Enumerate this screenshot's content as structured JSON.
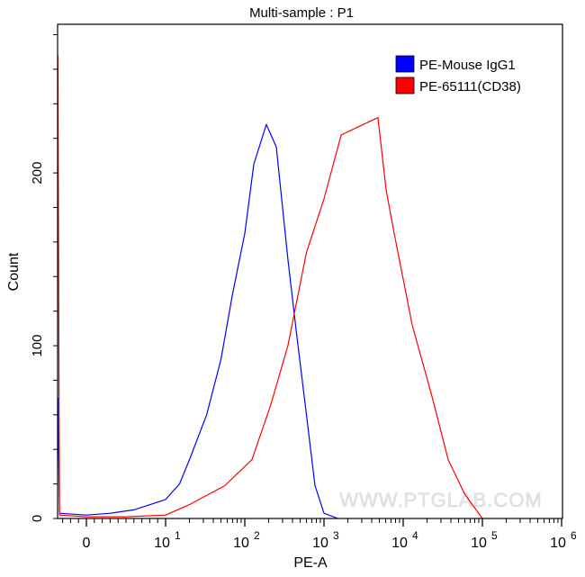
{
  "chart_data": {
    "type": "line",
    "title": "Multi-sample : P1",
    "xlabel": "PE-A",
    "ylabel": "Count",
    "xscale": "biexponential (linear near 0, log above 10)",
    "xlim": [
      -3.6,
      1000000
    ],
    "ylim": [
      0,
      286
    ],
    "x_ticks": [
      {
        "value": 0,
        "label": "0",
        "exp": ""
      },
      {
        "value": 10,
        "label": "10",
        "exp": "1"
      },
      {
        "value": 100,
        "label": "10",
        "exp": "2"
      },
      {
        "value": 1000,
        "label": "10",
        "exp": "3"
      },
      {
        "value": 10000,
        "label": "10",
        "exp": "4"
      },
      {
        "value": 100000,
        "label": "10",
        "exp": "5"
      },
      {
        "value": 1000000,
        "label": "10",
        "exp": "6"
      }
    ],
    "y_ticks": [
      {
        "value": 0,
        "label": "0"
      },
      {
        "value": 100,
        "label": "100"
      },
      {
        "value": 200,
        "label": "200"
      }
    ],
    "grid": false,
    "legend_position": "top-right",
    "series": [
      {
        "name": "PE-Mouse IgG1",
        "color": "#0000ff",
        "points": [
          [
            -3.6,
            70
          ],
          [
            -3.4,
            3
          ],
          [
            0,
            2
          ],
          [
            3,
            3
          ],
          [
            6,
            5
          ],
          [
            10,
            11
          ],
          [
            15,
            20
          ],
          [
            20,
            34
          ],
          [
            33,
            60
          ],
          [
            50,
            92
          ],
          [
            70,
            130
          ],
          [
            100,
            165
          ],
          [
            130,
            205
          ],
          [
            187,
            228
          ],
          [
            250,
            215
          ],
          [
            350,
            150
          ],
          [
            450,
            107
          ],
          [
            600,
            60
          ],
          [
            770,
            19
          ],
          [
            1000,
            3
          ],
          [
            1500,
            0
          ]
        ]
      },
      {
        "name": "PE-65111(CD38)",
        "color": "#ff0000",
        "points": [
          [
            -3.6,
            268
          ],
          [
            -3.4,
            2
          ],
          [
            0,
            1
          ],
          [
            5,
            1
          ],
          [
            10,
            2
          ],
          [
            20,
            8
          ],
          [
            56,
            19
          ],
          [
            123,
            34
          ],
          [
            210,
            65
          ],
          [
            350,
            100
          ],
          [
            600,
            154
          ],
          [
            1000,
            185
          ],
          [
            1650,
            222
          ],
          [
            2800,
            227
          ],
          [
            4800,
            232
          ],
          [
            6100,
            190
          ],
          [
            7700,
            165
          ],
          [
            13000,
            112
          ],
          [
            23000,
            71
          ],
          [
            37000,
            34
          ],
          [
            60000,
            14
          ],
          [
            100000,
            0
          ]
        ]
      }
    ],
    "watermark": "WWW.PTGLAB.COM"
  }
}
